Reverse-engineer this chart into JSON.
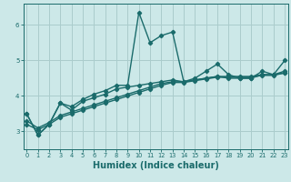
{
  "title": "",
  "xlabel": "Humidex (Indice chaleur)",
  "ylabel": "",
  "bg_color": "#cce8e8",
  "grid_color": "#aacccc",
  "line_color": "#1a6b6b",
  "x_values": [
    0,
    1,
    2,
    3,
    4,
    5,
    6,
    7,
    8,
    9,
    10,
    11,
    12,
    13,
    14,
    15,
    16,
    17,
    18,
    19,
    20,
    21,
    22,
    23
  ],
  "series": [
    [
      3.5,
      2.9,
      3.2,
      3.8,
      3.7,
      3.9,
      4.05,
      4.15,
      4.3,
      4.3,
      6.35,
      5.5,
      5.7,
      5.8,
      4.4,
      4.5,
      4.7,
      4.9,
      4.6,
      4.5,
      4.5,
      4.7,
      4.6,
      5.0
    ],
    [
      3.5,
      2.9,
      3.2,
      3.8,
      3.6,
      3.85,
      3.95,
      4.05,
      4.2,
      4.25,
      4.3,
      4.35,
      4.4,
      4.45,
      4.4,
      4.45,
      4.5,
      4.55,
      4.5,
      4.5,
      4.5,
      4.6,
      4.6,
      4.65
    ],
    [
      3.3,
      3.1,
      3.25,
      3.45,
      3.55,
      3.65,
      3.75,
      3.85,
      3.95,
      4.05,
      4.15,
      4.25,
      4.35,
      4.4,
      4.4,
      4.45,
      4.5,
      4.55,
      4.55,
      4.55,
      4.55,
      4.6,
      4.6,
      4.7
    ],
    [
      3.2,
      3.05,
      3.2,
      3.4,
      3.5,
      3.6,
      3.7,
      3.8,
      3.9,
      4.0,
      4.1,
      4.2,
      4.3,
      4.38,
      4.38,
      4.43,
      4.48,
      4.53,
      4.53,
      4.53,
      4.53,
      4.58,
      4.58,
      4.65
    ]
  ],
  "ylim": [
    2.5,
    6.6
  ],
  "yticks": [
    3,
    4,
    5,
    6
  ],
  "xlim": [
    -0.3,
    23.3
  ],
  "xticks": [
    0,
    1,
    2,
    3,
    4,
    5,
    6,
    7,
    8,
    9,
    10,
    11,
    12,
    13,
    14,
    15,
    16,
    17,
    18,
    19,
    20,
    21,
    22,
    23
  ],
  "marker": "D",
  "marker_size": 2.2,
  "line_width": 1.0,
  "tick_fontsize": 5.0,
  "label_fontsize": 7.0
}
